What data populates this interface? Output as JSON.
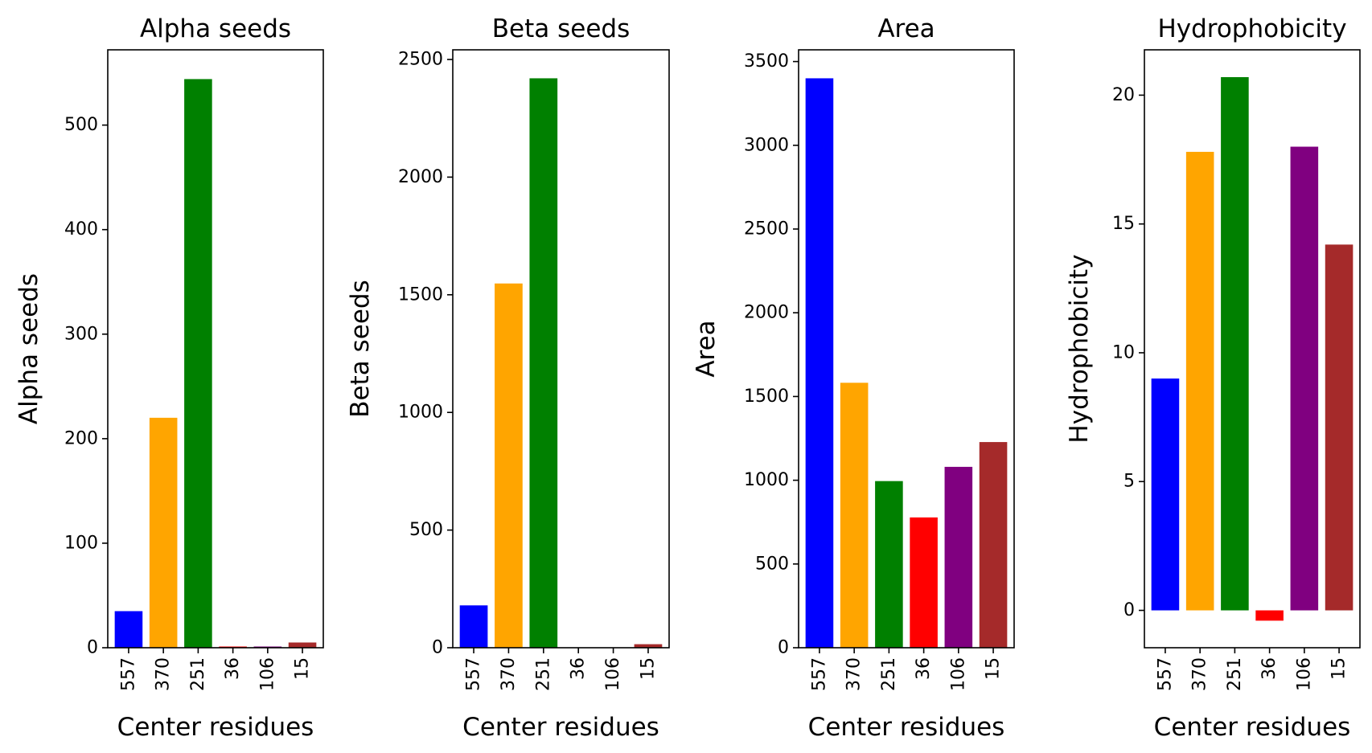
{
  "chart_data": [
    {
      "type": "bar",
      "title": "Alpha seeds",
      "xlabel": "Center residues",
      "ylabel": "Alpha seeds",
      "categories": [
        "557",
        "370",
        "251",
        "36",
        "106",
        "15"
      ],
      "values": [
        35,
        220,
        544,
        1,
        1,
        5
      ],
      "colors": [
        "#0000ff",
        "#ffa500",
        "#008000",
        "#ff0000",
        "#800080",
        "#a52a2a"
      ],
      "ylim": [
        0,
        572
      ],
      "yticks": [
        0,
        100,
        200,
        300,
        400,
        500
      ]
    },
    {
      "type": "bar",
      "title": "Beta seeds",
      "xlabel": "Center residues",
      "ylabel": "Beta seeds",
      "categories": [
        "557",
        "370",
        "251",
        "36",
        "106",
        "15"
      ],
      "values": [
        180,
        1548,
        2420,
        0,
        0,
        15
      ],
      "colors": [
        "#0000ff",
        "#ffa500",
        "#008000",
        "#ff0000",
        "#800080",
        "#a52a2a"
      ],
      "ylim": [
        0,
        2541
      ],
      "yticks": [
        0,
        500,
        1000,
        1500,
        2000,
        2500
      ]
    },
    {
      "type": "bar",
      "title": "Area",
      "xlabel": "Center residues",
      "ylabel": "Area",
      "categories": [
        "557",
        "370",
        "251",
        "36",
        "106",
        "15"
      ],
      "values": [
        3400,
        1582,
        995,
        778,
        1080,
        1228
      ],
      "colors": [
        "#0000ff",
        "#ffa500",
        "#008000",
        "#ff0000",
        "#800080",
        "#a52a2a"
      ],
      "ylim": [
        0,
        3570
      ],
      "yticks": [
        0,
        500,
        1000,
        1500,
        2000,
        2500,
        3000,
        3500
      ]
    },
    {
      "type": "bar",
      "title": "Hydrophobicity",
      "xlabel": "Center residues",
      "ylabel": "Hydrophobicity",
      "categories": [
        "557",
        "370",
        "251",
        "36",
        "106",
        "15"
      ],
      "values": [
        9.0,
        17.8,
        20.7,
        -0.4,
        18.0,
        14.2
      ],
      "colors": [
        "#0000ff",
        "#ffa500",
        "#008000",
        "#ff0000",
        "#800080",
        "#a52a2a"
      ],
      "ylim": [
        -1.45,
        21.76
      ],
      "yticks": [
        0,
        5,
        10,
        15,
        20
      ]
    }
  ]
}
